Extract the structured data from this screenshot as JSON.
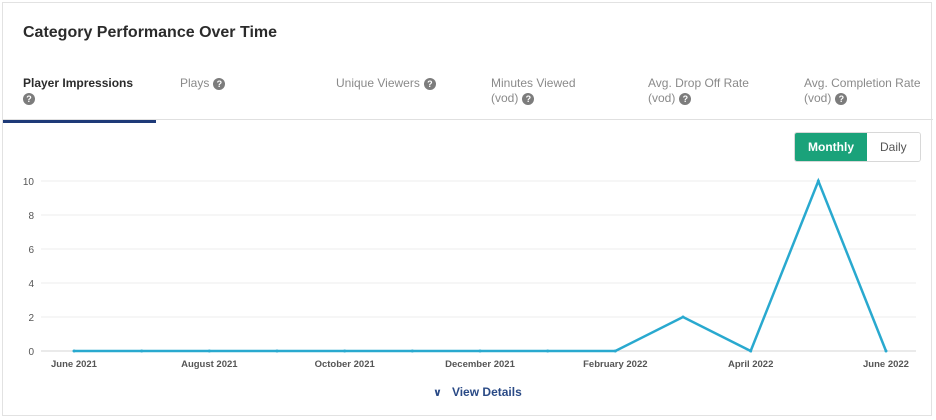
{
  "card": {
    "title": "Category Performance Over Time"
  },
  "tabs": [
    {
      "label": "Player Impressions",
      "sub": "",
      "active": true
    },
    {
      "label": "Plays",
      "sub": "",
      "active": false
    },
    {
      "label": "Unique Viewers",
      "sub": "",
      "active": false
    },
    {
      "label": "Minutes Viewed",
      "sub": "(vod)",
      "active": false
    },
    {
      "label": "Avg. Drop Off Rate",
      "sub": "(vod)",
      "active": false
    },
    {
      "label": "Avg. Completion Rate",
      "sub": "(vod)",
      "active": false
    }
  ],
  "help_icon": "question-circle-icon",
  "toggle": {
    "monthly": "Monthly",
    "daily": "Daily",
    "selected": "Monthly"
  },
  "footer": {
    "view_details": "View Details",
    "icon": "chevron-down-icon"
  },
  "colors": {
    "line": "#29a9cf",
    "accent": "#1aa27a",
    "tab_underline": "#1e3a78"
  },
  "chart_data": {
    "type": "line",
    "x": [
      "2021-06",
      "2021-07",
      "2021-08",
      "2021-09",
      "2021-10",
      "2021-11",
      "2021-12",
      "2022-01",
      "2022-02",
      "2022-03",
      "2022-04",
      "2022-05",
      "2022-06"
    ],
    "x_tick_labels": [
      "June 2021",
      "August 2021",
      "October 2021",
      "December 2021",
      "February 2022",
      "April 2022",
      "June 2022"
    ],
    "x_tick_positions": [
      "2021-06",
      "2021-08",
      "2021-10",
      "2021-12",
      "2022-02",
      "2022-04",
      "2022-06"
    ],
    "series": [
      {
        "values": [
          0,
          0,
          0,
          0,
          0,
          0,
          0,
          0,
          0,
          2,
          0,
          10,
          0
        ]
      }
    ],
    "y_ticks": [
      0,
      2,
      4,
      6,
      8,
      10
    ],
    "ylim": [
      0,
      10
    ],
    "grid": true,
    "title": "",
    "xlabel": "",
    "ylabel": ""
  }
}
